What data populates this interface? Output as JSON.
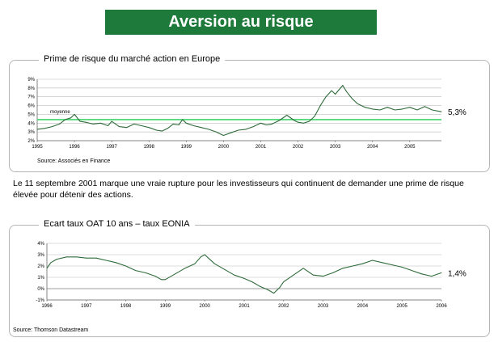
{
  "page_title": "Aversion au risque",
  "body_text": "Le 11 septembre 2001 marque une vraie rupture pour les investisseurs qui continuent de demander une prime de risque élevée pour détenir des actions.",
  "chart_data": [
    {
      "type": "line",
      "title": "Prime de risque du marché action en Europe",
      "source": "Source:  Associés en Finance",
      "x_ticks": [
        "1995",
        "1996",
        "1997",
        "1998",
        "1999",
        "2000",
        "2001",
        "2002",
        "2003",
        "2004",
        "2005"
      ],
      "y_ticks": [
        "2%",
        "3%",
        "4%",
        "5%",
        "6%",
        "7%",
        "8%",
        "9%"
      ],
      "ylim": [
        2,
        9
      ],
      "xlim": [
        1995.0,
        2005.85
      ],
      "grid": true,
      "reference_line": {
        "label": "moyenne",
        "value": 4.4,
        "color": "#3fd46a"
      },
      "end_label": "5,3%",
      "series": [
        {
          "color": "#2e6b3a",
          "x": [
            1995.0,
            1995.2,
            1995.4,
            1995.6,
            1995.75,
            1995.9,
            1996.0,
            1996.15,
            1996.3,
            1996.5,
            1996.7,
            1996.9,
            1997.0,
            1997.2,
            1997.4,
            1997.6,
            1997.8,
            1998.0,
            1998.2,
            1998.35,
            1998.5,
            1998.65,
            1998.8,
            1998.9,
            1999.0,
            1999.2,
            1999.4,
            1999.6,
            1999.8,
            2000.0,
            2000.2,
            2000.4,
            2000.6,
            2000.8,
            2001.0,
            2001.15,
            2001.3,
            2001.5,
            2001.7,
            2001.9,
            2002.0,
            2002.15,
            2002.3,
            2002.45,
            2002.6,
            2002.75,
            2002.9,
            2003.0,
            2003.1,
            2003.2,
            2003.3,
            2003.45,
            2003.6,
            2003.8,
            2004.0,
            2004.2,
            2004.4,
            2004.6,
            2004.8,
            2005.0,
            2005.2,
            2005.4,
            2005.6,
            2005.85
          ],
          "y": [
            3.3,
            3.4,
            3.6,
            3.9,
            4.4,
            4.6,
            5.0,
            4.2,
            4.1,
            3.9,
            4.0,
            3.7,
            4.2,
            3.6,
            3.5,
            3.9,
            3.7,
            3.5,
            3.2,
            3.1,
            3.4,
            3.9,
            3.8,
            4.4,
            4.0,
            3.7,
            3.5,
            3.3,
            3.0,
            2.6,
            2.9,
            3.2,
            3.3,
            3.6,
            4.0,
            3.8,
            3.9,
            4.3,
            4.9,
            4.3,
            4.1,
            4.0,
            4.2,
            4.8,
            6.0,
            7.0,
            7.7,
            7.3,
            7.8,
            8.3,
            7.6,
            6.8,
            6.2,
            5.8,
            5.6,
            5.5,
            5.8,
            5.5,
            5.6,
            5.8,
            5.5,
            5.9,
            5.5,
            5.3
          ]
        }
      ]
    },
    {
      "type": "line",
      "title": "Ecart taux OAT 10 ans – taux EONIA",
      "source": "Source:  Thomson Datastream",
      "x_ticks": [
        "1996",
        "1997",
        "1998",
        "1999",
        "2000",
        "2001",
        "2002",
        "2003",
        "2004",
        "2005",
        "2006"
      ],
      "y_ticks": [
        "-1%",
        "0%",
        "1%",
        "2%",
        "3%",
        "4%"
      ],
      "ylim": [
        -1,
        4
      ],
      "xlim": [
        1996.0,
        2006.0
      ],
      "grid": true,
      "end_label": "1,4%",
      "series": [
        {
          "color": "#2e6b3a",
          "x": [
            1996.0,
            1996.1,
            1996.25,
            1996.5,
            1996.75,
            1997.0,
            1997.25,
            1997.5,
            1997.75,
            1998.0,
            1998.25,
            1998.5,
            1998.75,
            1998.9,
            1999.0,
            1999.25,
            1999.5,
            1999.75,
            1999.9,
            2000.0,
            2000.25,
            2000.5,
            2000.75,
            2001.0,
            2001.2,
            2001.4,
            2001.6,
            2001.75,
            2001.9,
            2002.0,
            2002.25,
            2002.5,
            2002.75,
            2003.0,
            2003.25,
            2003.5,
            2003.75,
            2004.0,
            2004.25,
            2004.5,
            2004.75,
            2005.0,
            2005.25,
            2005.5,
            2005.75,
            2006.0
          ],
          "y": [
            1.8,
            2.3,
            2.6,
            2.8,
            2.8,
            2.7,
            2.7,
            2.5,
            2.3,
            2.0,
            1.6,
            1.4,
            1.1,
            0.8,
            0.8,
            1.3,
            1.8,
            2.2,
            2.8,
            3.0,
            2.2,
            1.7,
            1.2,
            0.9,
            0.6,
            0.2,
            -0.1,
            -0.4,
            0.1,
            0.6,
            1.2,
            1.8,
            1.2,
            1.1,
            1.4,
            1.8,
            2.0,
            2.2,
            2.5,
            2.3,
            2.1,
            1.9,
            1.6,
            1.3,
            1.1,
            1.4
          ]
        }
      ]
    }
  ]
}
